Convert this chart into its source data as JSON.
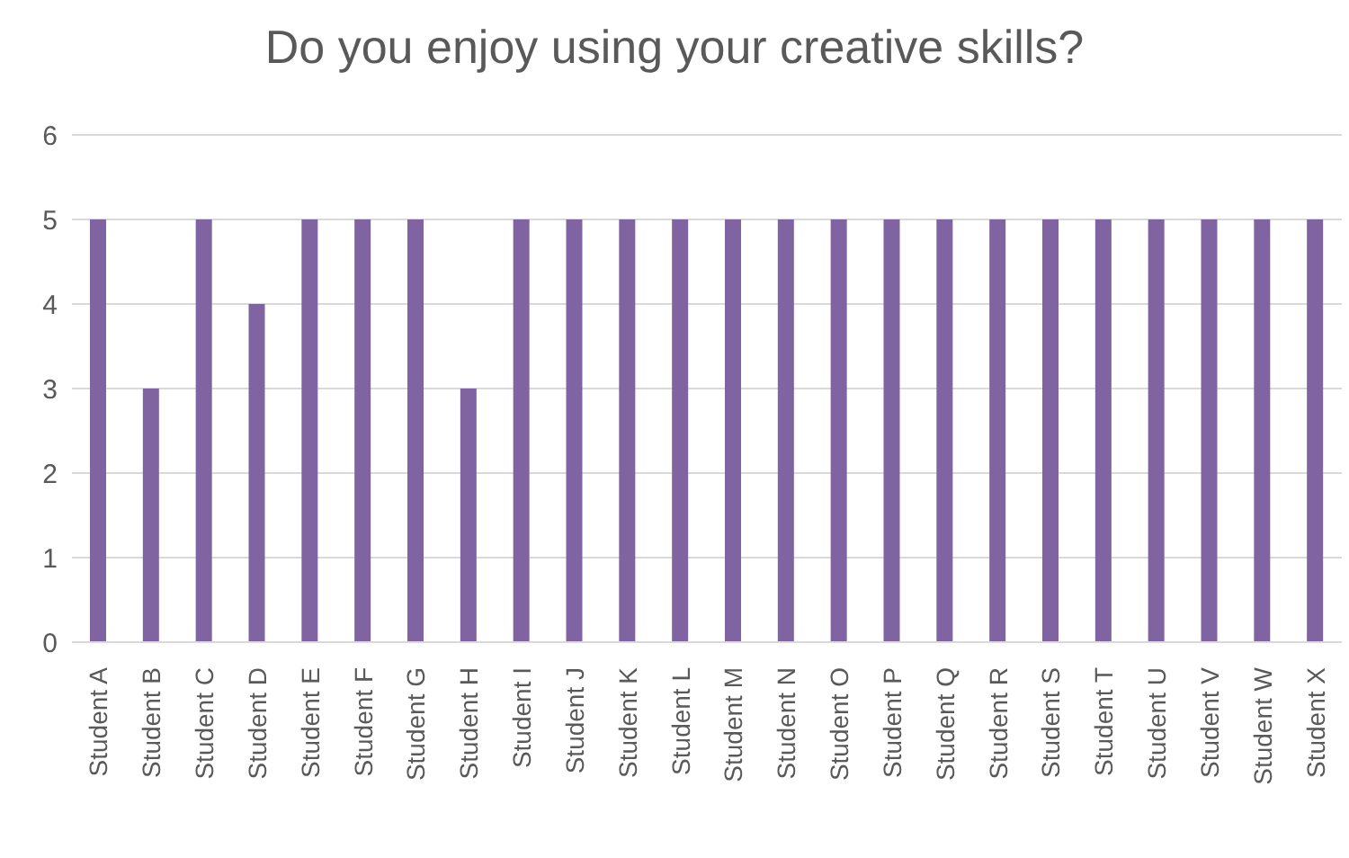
{
  "chart_data": {
    "type": "bar",
    "title": "Do you enjoy using your creative skills?",
    "categories": [
      "Student A",
      "Student B",
      "Student C",
      "Student D",
      "Student E",
      "Student F",
      "Student G",
      "Student H",
      "Student I",
      "Student J",
      "Student K",
      "Student L",
      "Student M",
      "Student N",
      "Student O",
      "Student P",
      "Student Q",
      "Student R",
      "Student S",
      "Student T",
      "Student U",
      "Student V",
      "Student W",
      "Student X"
    ],
    "values": [
      5,
      3,
      5,
      4,
      5,
      5,
      5,
      3,
      5,
      5,
      5,
      5,
      5,
      5,
      5,
      5,
      5,
      5,
      5,
      5,
      5,
      5,
      5,
      5
    ],
    "color": "#8064a2",
    "ylim": [
      0,
      6
    ],
    "yticks": [
      0,
      1,
      2,
      3,
      4,
      5,
      6
    ],
    "grid": "y"
  }
}
